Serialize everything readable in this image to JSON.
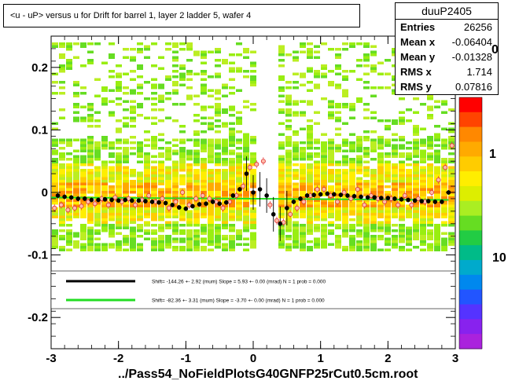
{
  "title": "<u - uP>       versus   u for Drift for barrel 1, layer 2 ladder 5, wafer 4",
  "stats": {
    "name": "duuP2405",
    "rows": [
      {
        "label": "Entries",
        "value": "26256"
      },
      {
        "label": "Mean x",
        "value": "-0.06404"
      },
      {
        "label": "Mean y",
        "value": "-0.01328"
      },
      {
        "label": "RMS x",
        "value": "1.714"
      },
      {
        "label": "RMS y",
        "value": "0.07816"
      }
    ]
  },
  "footer": "../Pass54_NoFieldPlotsG40GNFP25rCut0.5cm.root",
  "zaxis_labels": [
    "0",
    "1",
    "10"
  ],
  "legend": [
    {
      "text": "Shift=   -144.26 +- 2.92 (mum) Slope =     5.93 +- 0.00 (mrad)  N = 1 prob = 0.000",
      "color": "#000000"
    },
    {
      "text": "Shift=   -82.36 +- 3.31 (mum) Slope =    -3.70 +- 0.00 (mrad)  N = 1 prob = 0.000",
      "color": "#22dd22"
    }
  ],
  "chart_data": {
    "type": "heatmap",
    "xlim": [
      -3,
      3
    ],
    "ylim": [
      -0.25,
      0.25
    ],
    "xticks": [
      -3,
      -2,
      -1,
      0,
      1,
      2,
      3
    ],
    "yticks": [
      -0.2,
      -0.1,
      0,
      0.1,
      0.2
    ],
    "xtick_labels": [
      "-3",
      "-2",
      "-1",
      "0",
      "1",
      "2",
      "3"
    ],
    "ytick_labels": [
      "-0.2",
      "-0.1",
      "0",
      "0.1",
      "0.2"
    ],
    "profile_black": {
      "x": [
        -2.9,
        -2.8,
        -2.7,
        -2.6,
        -2.5,
        -2.4,
        -2.3,
        -2.2,
        -2.1,
        -2.0,
        -1.9,
        -1.8,
        -1.7,
        -1.6,
        -1.5,
        -1.4,
        -1.3,
        -1.2,
        -1.1,
        -1.0,
        -0.9,
        -0.8,
        -0.7,
        -0.6,
        -0.5,
        -0.4,
        -0.3,
        -0.2,
        -0.1,
        0.0,
        0.1,
        0.2,
        0.3,
        0.4,
        0.5,
        0.6,
        0.7,
        0.8,
        0.9,
        1.0,
        1.1,
        1.2,
        1.3,
        1.4,
        1.5,
        1.6,
        1.7,
        1.8,
        1.9,
        2.0,
        2.1,
        2.2,
        2.3,
        2.4,
        2.5,
        2.6,
        2.7,
        2.8,
        2.9
      ],
      "y": [
        -0.005,
        -0.007,
        -0.008,
        -0.01,
        -0.01,
        -0.012,
        -0.012,
        -0.011,
        -0.012,
        -0.013,
        -0.012,
        -0.013,
        -0.013,
        -0.014,
        -0.015,
        -0.016,
        -0.017,
        -0.02,
        -0.024,
        -0.026,
        -0.022,
        -0.019,
        -0.018,
        -0.015,
        -0.018,
        -0.016,
        -0.005,
        0.005,
        0.03,
        0.0,
        0.005,
        -0.005,
        -0.035,
        -0.05,
        -0.025,
        -0.015,
        -0.01,
        -0.005,
        -0.004,
        -0.003,
        -0.002,
        -0.003,
        -0.004,
        -0.005,
        -0.006,
        -0.007,
        -0.008,
        -0.008,
        -0.009,
        -0.009,
        -0.01,
        -0.011,
        -0.012,
        -0.013,
        -0.014,
        -0.014,
        -0.015,
        -0.015,
        0.0
      ]
    },
    "profile_red": {
      "x": [
        -2.95,
        -2.85,
        -2.75,
        -2.65,
        -2.55,
        -2.45,
        -2.35,
        -2.25,
        -2.15,
        -2.05,
        -1.95,
        -1.85,
        -1.75,
        -1.65,
        -1.55,
        -1.45,
        -1.35,
        -1.25,
        -1.15,
        -1.05,
        -0.95,
        -0.85,
        -0.75,
        -0.65,
        -0.55,
        -0.45,
        -0.35,
        -0.25,
        -0.15,
        -0.05,
        0.05,
        0.15,
        0.25,
        0.35,
        0.45,
        0.55,
        0.65,
        0.75,
        0.85,
        0.95,
        1.05,
        1.15,
        1.25,
        1.35,
        1.45,
        1.55,
        1.65,
        1.75,
        1.85,
        1.95,
        2.05,
        2.15,
        2.25,
        2.35,
        2.45,
        2.55,
        2.65,
        2.75,
        2.85,
        2.95
      ],
      "y": [
        -0.025,
        -0.02,
        -0.028,
        -0.025,
        -0.022,
        -0.015,
        -0.018,
        -0.01,
        -0.02,
        -0.008,
        -0.015,
        -0.01,
        -0.02,
        -0.012,
        -0.005,
        -0.015,
        -0.01,
        -0.025,
        -0.015,
        0.0,
        -0.02,
        -0.01,
        -0.005,
        -0.01,
        -0.015,
        -0.025,
        -0.015,
        -0.005,
        0.01,
        0.04,
        0.045,
        0.05,
        -0.02,
        -0.045,
        -0.048,
        -0.035,
        -0.025,
        -0.015,
        -0.005,
        0.005,
        0.005,
        -0.005,
        -0.015,
        0.0,
        -0.01,
        0.005,
        -0.02,
        -0.005,
        -0.01,
        -0.015,
        -0.01,
        -0.02,
        -0.005,
        -0.02,
        -0.01,
        -0.015,
        0.0,
        0.02,
        0.04,
        0.075
      ]
    }
  }
}
